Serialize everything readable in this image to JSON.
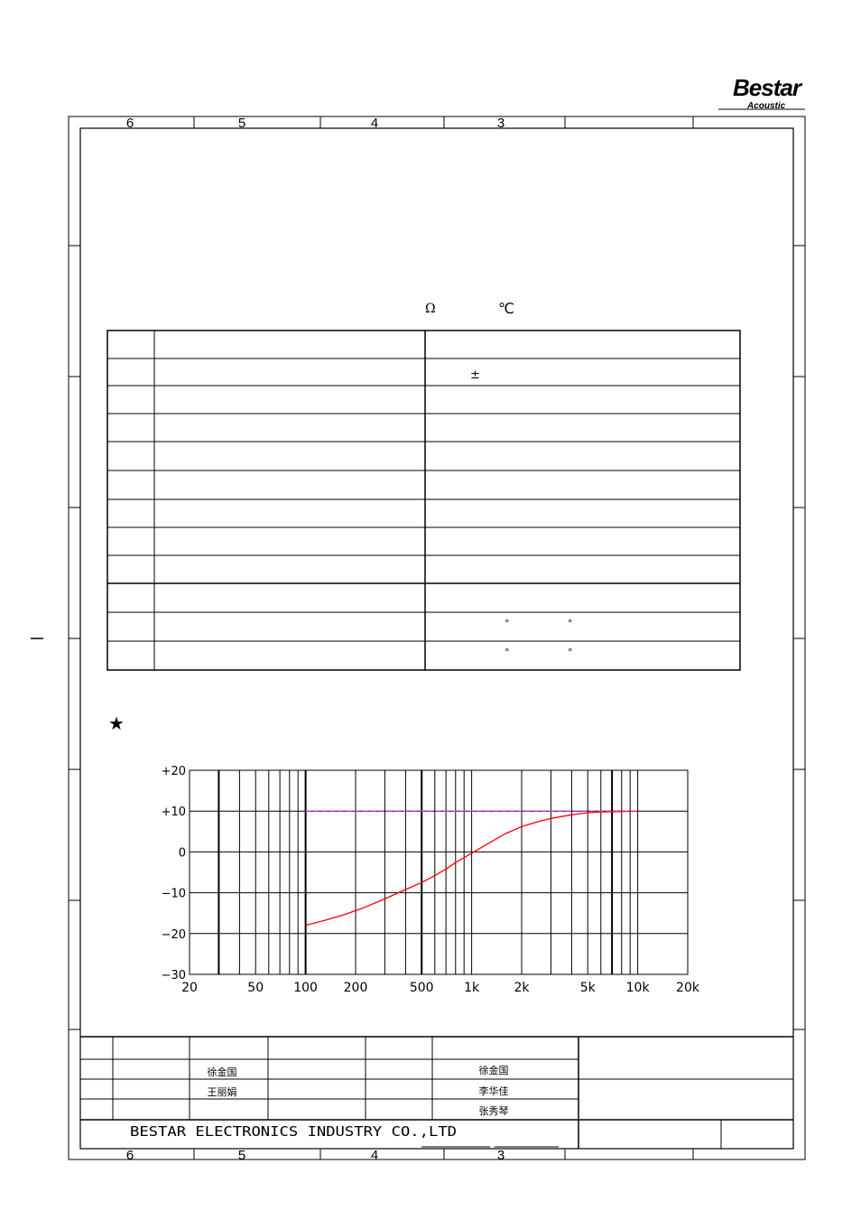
{
  "header": {
    "logo_text": "Bestar",
    "logo_subtext": "Acoustic"
  },
  "frame": {
    "top_zones": [
      "6",
      "5",
      "4",
      "3"
    ],
    "bottom_zones": [
      "6",
      "5",
      "4",
      "3"
    ]
  },
  "spec": {
    "unit_symbols": {
      "ohm": "Ω",
      "celsius": "℃"
    },
    "row_count": 12,
    "tolerance_symbol": "±",
    "degree_symbol": "°"
  },
  "section_marker": "★",
  "chart_data": {
    "type": "line",
    "title": "",
    "xlabel": "",
    "ylabel": "",
    "x_scale": "log",
    "xlim": [
      20,
      20000
    ],
    "ylim": [
      -30,
      20
    ],
    "x_ticks": [
      20,
      50,
      100,
      200,
      500,
      1000,
      2000,
      5000,
      10000,
      20000
    ],
    "x_tick_labels": [
      "20",
      "50",
      "100",
      "200",
      "500",
      "1k",
      "2k",
      "5k",
      "10k",
      "20k"
    ],
    "y_ticks": [
      20,
      10,
      0,
      -10,
      -20,
      -30
    ],
    "y_tick_labels": [
      "+20",
      "+10",
      "0",
      "−10",
      "−20",
      "−30"
    ],
    "grid": true,
    "series": [
      {
        "color": "#ff0000",
        "style": "solid",
        "x": [
          100,
          130,
          170,
          220,
          300,
          400,
          500,
          600,
          700,
          800,
          1000,
          1300,
          1600,
          2000,
          2500,
          3000,
          4000,
          5000,
          6000,
          8000,
          10000
        ],
        "y": [
          -18,
          -16.8,
          -15.4,
          -13.8,
          -11.5,
          -9.2,
          -7.5,
          -5.8,
          -4.2,
          -2.6,
          -0.3,
          2.4,
          4.5,
          6.2,
          7.4,
          8.2,
          9.1,
          9.6,
          9.8,
          9.9,
          10
        ]
      },
      {
        "color": "#cc33cc",
        "style": "dashed",
        "x": [
          100,
          10000
        ],
        "y": [
          10,
          10
        ]
      }
    ]
  },
  "title_block": {
    "signatures": {
      "drawn": "徐金国",
      "checked": "王丽娟",
      "approved_1": "徐金国",
      "approved_2": "李华佳",
      "approved_3": "张秀琴"
    },
    "company": "BESTAR ELECTRONICS INDUSTRY CO.,LTD"
  }
}
